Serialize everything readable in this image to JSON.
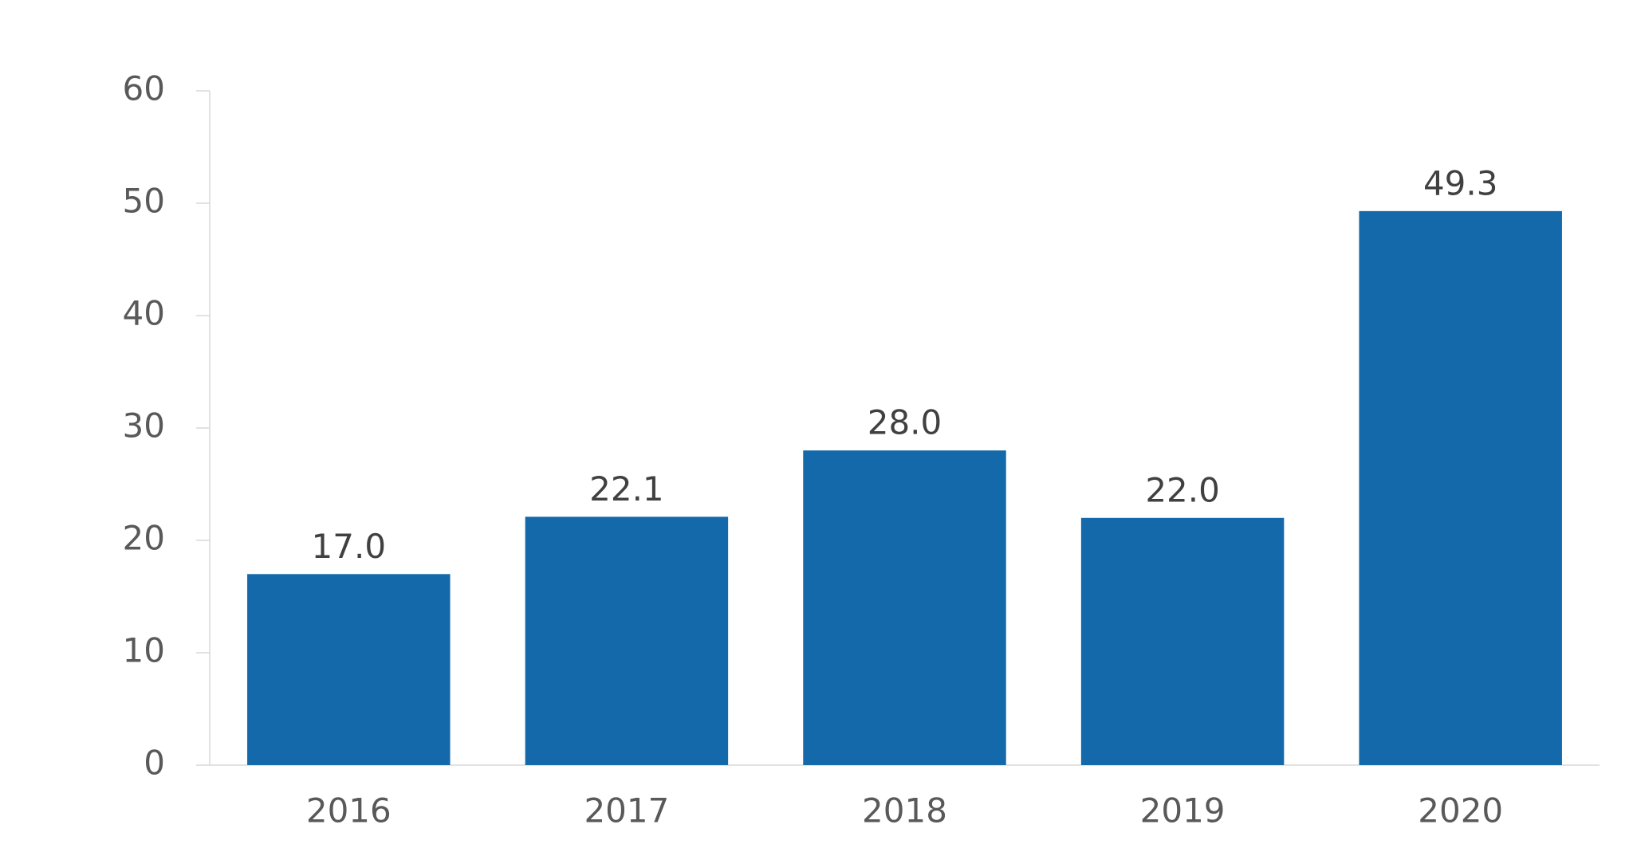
{
  "chart_data": {
    "type": "bar",
    "categories": [
      "2016",
      "2017",
      "2018",
      "2019",
      "2020"
    ],
    "values": [
      17.0,
      22.1,
      28.0,
      22.0,
      49.3
    ],
    "value_labels": [
      "17.0",
      "22.1",
      "28.0",
      "22.0",
      "49.3"
    ],
    "color": "#1469aa",
    "ylim": [
      0,
      60
    ],
    "yticks": [
      0,
      10,
      20,
      30,
      40,
      50,
      60
    ],
    "grid": false
  }
}
